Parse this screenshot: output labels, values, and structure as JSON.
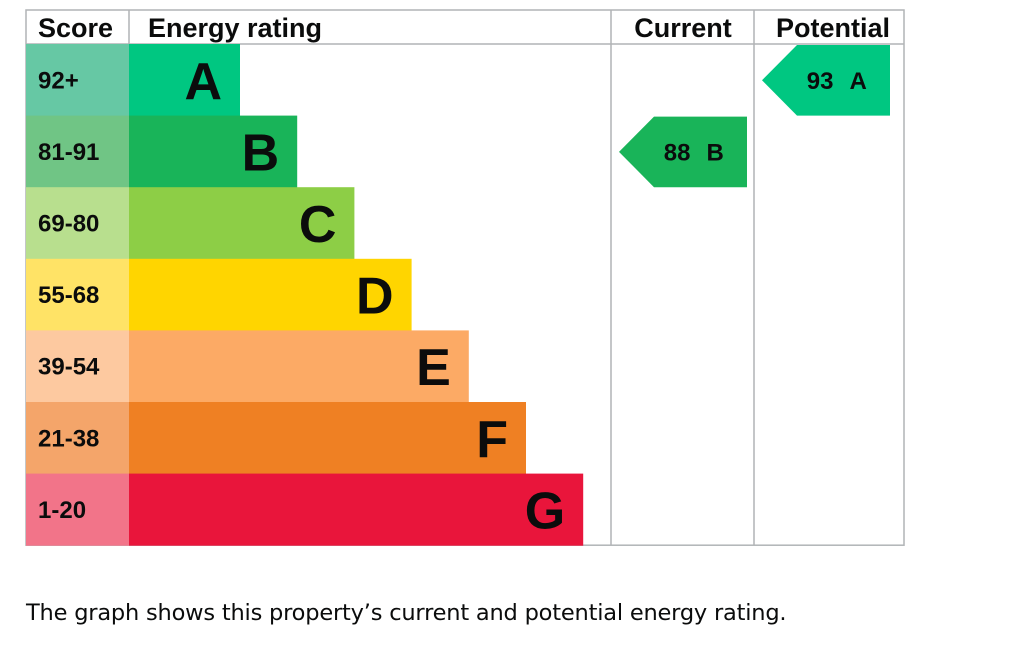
{
  "chart_data": {
    "type": "table",
    "headers": {
      "score": "Score",
      "rating": "Energy rating",
      "current": "Current",
      "potential": "Potential"
    },
    "bands": [
      {
        "score": "92+",
        "letter": "A",
        "color": "#00c781",
        "score_bg": "#66c8a4"
      },
      {
        "score": "81-91",
        "letter": "B",
        "color": "#19b459",
        "score_bg": "#70c585"
      },
      {
        "score": "69-80",
        "letter": "C",
        "color": "#8dce46",
        "score_bg": "#b8df8e"
      },
      {
        "score": "55-68",
        "letter": "D",
        "color": "#ffd500",
        "score_bg": "#ffe366"
      },
      {
        "score": "39-54",
        "letter": "E",
        "color": "#fcaa65",
        "score_bg": "#fdc9a0"
      },
      {
        "score": "21-38",
        "letter": "F",
        "color": "#ef8023",
        "score_bg": "#f4a56a"
      },
      {
        "score": "1-20",
        "letter": "G",
        "color": "#e9153b",
        "score_bg": "#f27489"
      }
    ],
    "current": {
      "value": "88",
      "letter": "B",
      "color": "#19b459"
    },
    "potential": {
      "value": "93",
      "letter": "A",
      "color": "#00c781"
    }
  },
  "caption": "The graph shows this property’s current and potential energy rating."
}
